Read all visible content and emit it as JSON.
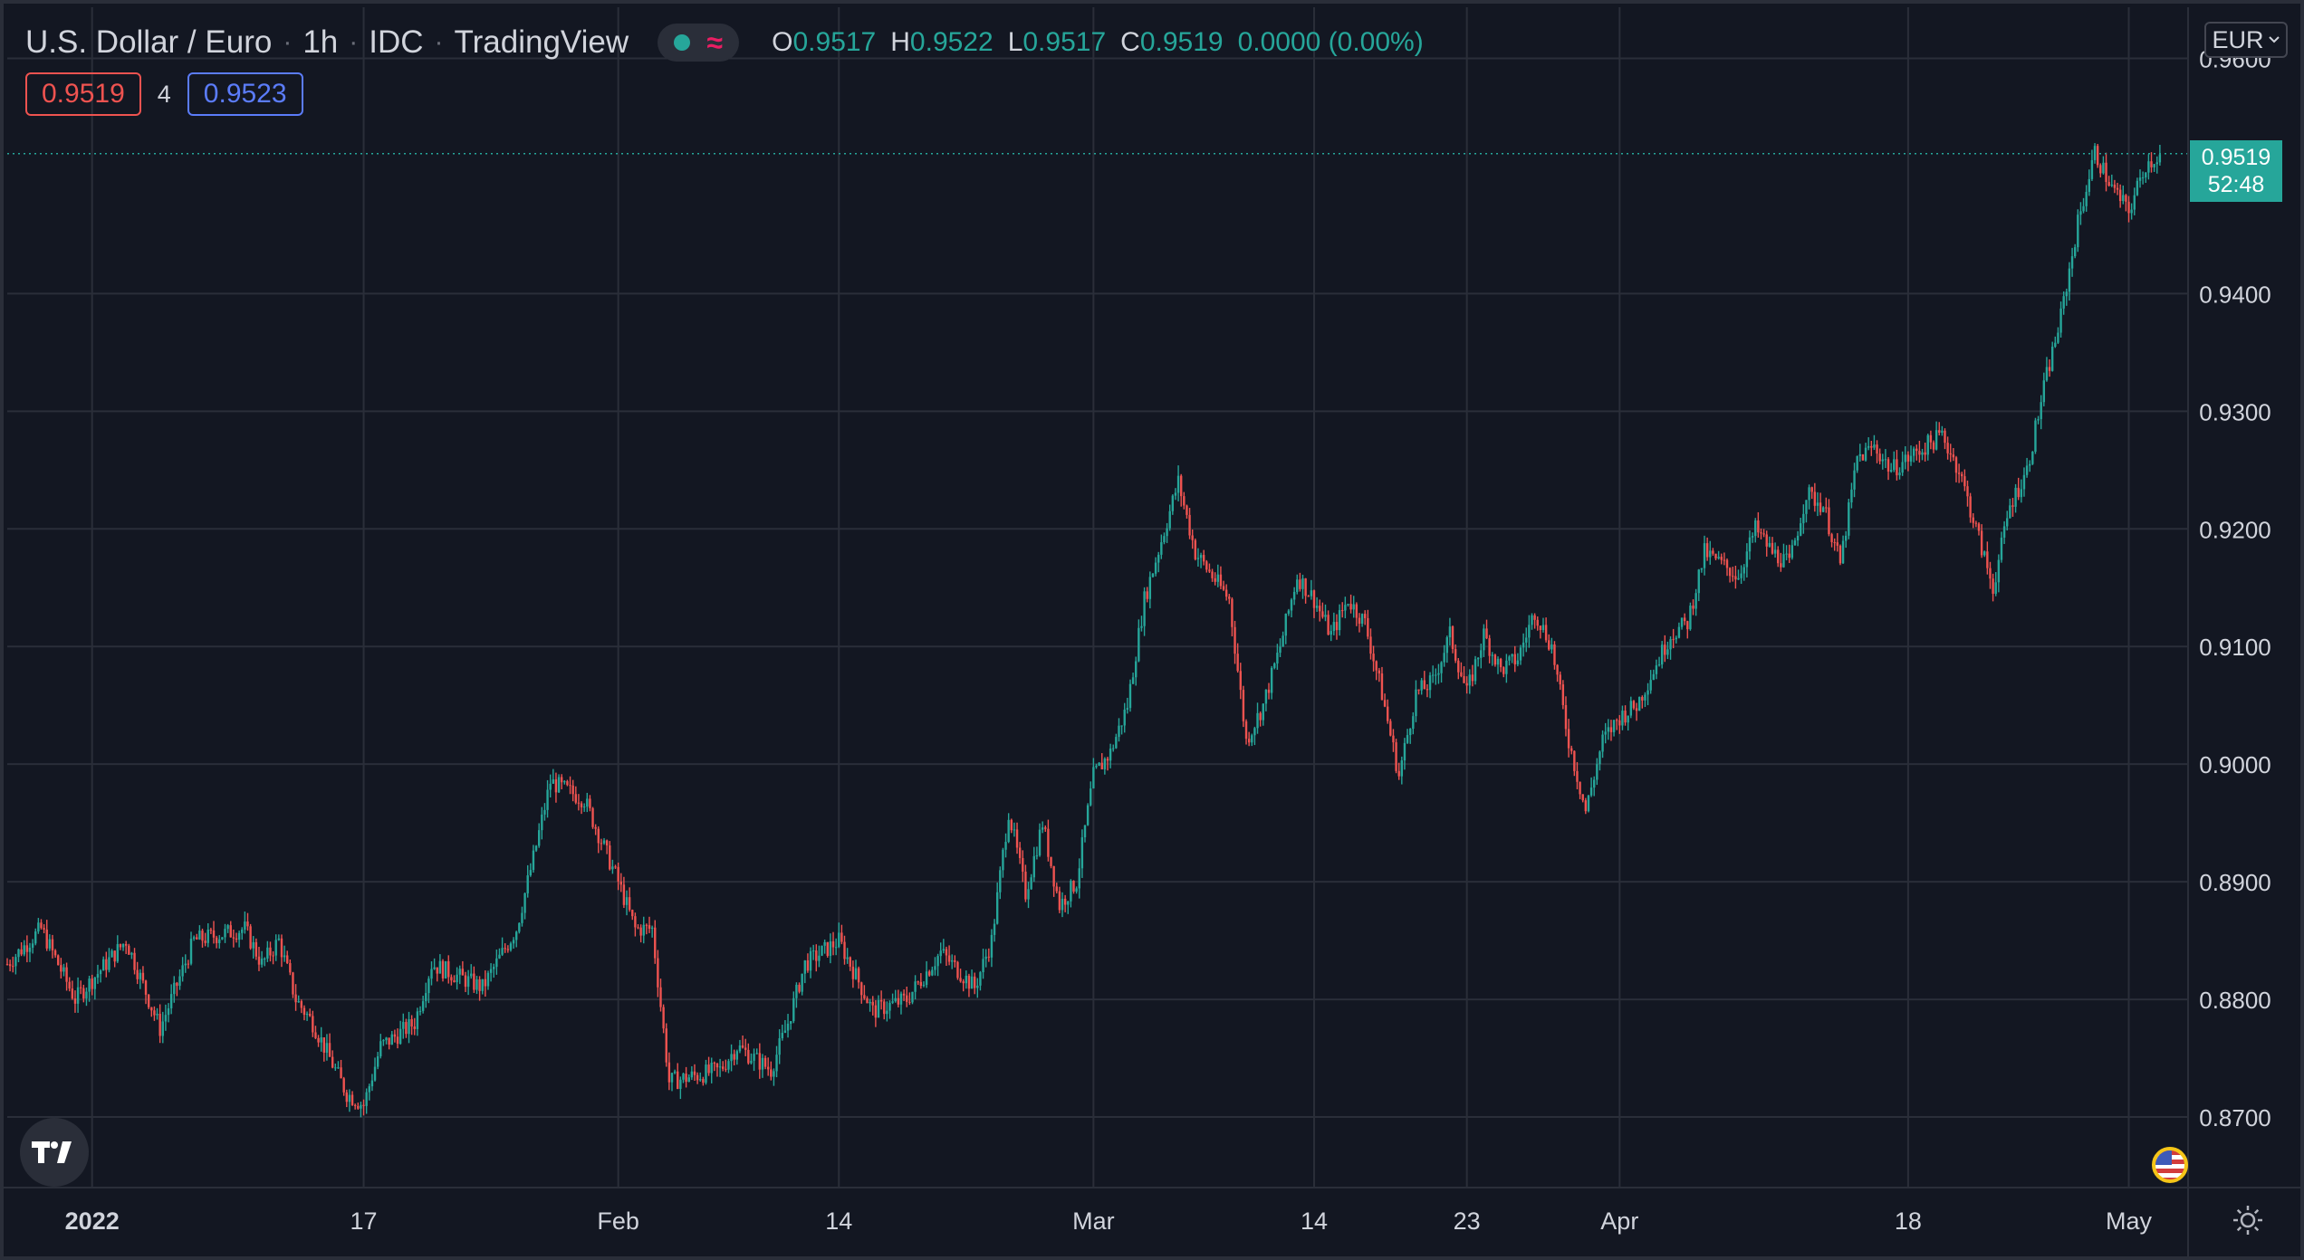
{
  "header": {
    "symbol": "U.S. Dollar / Euro",
    "interval": "1h",
    "exchange": "IDC",
    "source": "TradingView",
    "ohlc": {
      "o_label": "O",
      "o": "0.9517",
      "h_label": "H",
      "h": "0.9522",
      "l_label": "L",
      "l": "0.9517",
      "c_label": "C",
      "c": "0.9519",
      "change": "0.0000 (0.00%)"
    }
  },
  "quotes": {
    "sell": "0.9519",
    "spread": "4",
    "buy": "0.9523"
  },
  "currency": {
    "label": "EUR"
  },
  "last_price": {
    "price": "0.9519",
    "countdown": "52:48"
  },
  "colors": {
    "up": "#26a69a",
    "down": "#ef5350",
    "background": "#131722",
    "grid": "#2a2e39",
    "text": "#d1d4dc"
  },
  "icons": {
    "logo": "tradingview-logo-icon",
    "flag": "us-flag-icon",
    "settings": "gear-icon"
  },
  "chart_data": {
    "type": "candlestick",
    "interval": "1h",
    "ylim": [
      0.864,
      0.9605
    ],
    "yticks": [
      "0.8700",
      "0.8800",
      "0.8900",
      "0.9000",
      "0.9100",
      "0.9200",
      "0.9300",
      "0.9400",
      "0.9600"
    ],
    "xlim": [
      "2021-12-27",
      "2022-05-03"
    ],
    "xticks": [
      {
        "label": "2022",
        "date": "2022-01-01",
        "bold": true
      },
      {
        "label": "17",
        "date": "2022-01-17"
      },
      {
        "label": "Feb",
        "date": "2022-02-01"
      },
      {
        "label": "14",
        "date": "2022-02-14"
      },
      {
        "label": "Mar",
        "date": "2022-03-01"
      },
      {
        "label": "14",
        "date": "2022-03-14"
      },
      {
        "label": "23",
        "date": "2022-03-23"
      },
      {
        "label": "Apr",
        "date": "2022-04-01"
      },
      {
        "label": "18",
        "date": "2022-04-18"
      },
      {
        "label": "May",
        "date": "2022-05-01"
      }
    ],
    "grid": true,
    "last_price": 0.9519,
    "price_path": [
      [
        "2021-12-27",
        0.883
      ],
      [
        "2021-12-29",
        0.886
      ],
      [
        "2021-12-31",
        0.88
      ],
      [
        "2022-01-03",
        0.885
      ],
      [
        "2022-01-05",
        0.8775
      ],
      [
        "2022-01-07",
        0.885
      ],
      [
        "2022-01-10",
        0.886
      ],
      [
        "2022-01-11",
        0.883
      ],
      [
        "2022-01-12",
        0.885
      ],
      [
        "2022-01-13",
        0.88
      ],
      [
        "2022-01-14",
        0.878
      ],
      [
        "2022-01-16",
        0.872
      ],
      [
        "2022-01-17",
        0.871
      ],
      [
        "2022-01-18",
        0.876
      ],
      [
        "2022-01-20",
        0.878
      ],
      [
        "2022-01-21",
        0.883
      ],
      [
        "2022-01-24",
        0.881
      ],
      [
        "2022-01-26",
        0.886
      ],
      [
        "2022-01-27",
        0.892
      ],
      [
        "2022-01-28",
        0.8985
      ],
      [
        "2022-01-30",
        0.897
      ],
      [
        "2022-02-01",
        0.89
      ],
      [
        "2022-02-02",
        0.886
      ],
      [
        "2022-02-03",
        0.886
      ],
      [
        "2022-02-04",
        0.873
      ],
      [
        "2022-02-07",
        0.874
      ],
      [
        "2022-02-08",
        0.876
      ],
      [
        "2022-02-10",
        0.874
      ],
      [
        "2022-02-11",
        0.878
      ],
      [
        "2022-02-12",
        0.883
      ],
      [
        "2022-02-14",
        0.885
      ],
      [
        "2022-02-16",
        0.879
      ],
      [
        "2022-02-18",
        0.88
      ],
      [
        "2022-02-20",
        0.884
      ],
      [
        "2022-02-22",
        0.881
      ],
      [
        "2022-02-23",
        0.885
      ],
      [
        "2022-02-24",
        0.896
      ],
      [
        "2022-02-25",
        0.889
      ],
      [
        "2022-02-26",
        0.895
      ],
      [
        "2022-02-27",
        0.888
      ],
      [
        "2022-02-28",
        0.89
      ],
      [
        "2022-03-01",
        0.899
      ],
      [
        "2022-03-02",
        0.901
      ],
      [
        "2022-03-03",
        0.905
      ],
      [
        "2022-03-04",
        0.914
      ],
      [
        "2022-03-05",
        0.919
      ],
      [
        "2022-03-06",
        0.924
      ],
      [
        "2022-03-07",
        0.918
      ],
      [
        "2022-03-09",
        0.914
      ],
      [
        "2022-03-10",
        0.902
      ],
      [
        "2022-03-11",
        0.905
      ],
      [
        "2022-03-12",
        0.91
      ],
      [
        "2022-03-13",
        0.916
      ],
      [
        "2022-03-14",
        0.914
      ],
      [
        "2022-03-15",
        0.911
      ],
      [
        "2022-03-16",
        0.914
      ],
      [
        "2022-03-17",
        0.912
      ],
      [
        "2022-03-18",
        0.906
      ],
      [
        "2022-03-19",
        0.899
      ],
      [
        "2022-03-20",
        0.906
      ],
      [
        "2022-03-21",
        0.907
      ],
      [
        "2022-03-22",
        0.911
      ],
      [
        "2022-03-23",
        0.906
      ],
      [
        "2022-03-24",
        0.911
      ],
      [
        "2022-03-25",
        0.908
      ],
      [
        "2022-03-26",
        0.909
      ],
      [
        "2022-03-27",
        0.913
      ],
      [
        "2022-03-28",
        0.91
      ],
      [
        "2022-03-29",
        0.902
      ],
      [
        "2022-03-30",
        0.896
      ],
      [
        "2022-03-31",
        0.902
      ],
      [
        "2022-04-01",
        0.904
      ],
      [
        "2022-04-02",
        0.905
      ],
      [
        "2022-04-04",
        0.911
      ],
      [
        "2022-04-05",
        0.912
      ],
      [
        "2022-04-06",
        0.918
      ],
      [
        "2022-04-08",
        0.916
      ],
      [
        "2022-04-09",
        0.92
      ],
      [
        "2022-04-10",
        0.918
      ],
      [
        "2022-04-11",
        0.917
      ],
      [
        "2022-04-12",
        0.923
      ],
      [
        "2022-04-13",
        0.922
      ],
      [
        "2022-04-14",
        0.917
      ],
      [
        "2022-04-15",
        0.926
      ],
      [
        "2022-04-16",
        0.927
      ],
      [
        "2022-04-17",
        0.925
      ],
      [
        "2022-04-18",
        0.926
      ],
      [
        "2022-04-20",
        0.928
      ],
      [
        "2022-04-21",
        0.925
      ],
      [
        "2022-04-22",
        0.92
      ],
      [
        "2022-04-23",
        0.915
      ],
      [
        "2022-04-24",
        0.922
      ],
      [
        "2022-04-25",
        0.925
      ],
      [
        "2022-04-26",
        0.932
      ],
      [
        "2022-04-27",
        0.938
      ],
      [
        "2022-04-28",
        0.946
      ],
      [
        "2022-04-29",
        0.952
      ],
      [
        "2022-04-30",
        0.949
      ],
      [
        "2022-05-01",
        0.947
      ],
      [
        "2022-05-02",
        0.951
      ],
      [
        "2022-05-03",
        0.9519
      ]
    ]
  }
}
